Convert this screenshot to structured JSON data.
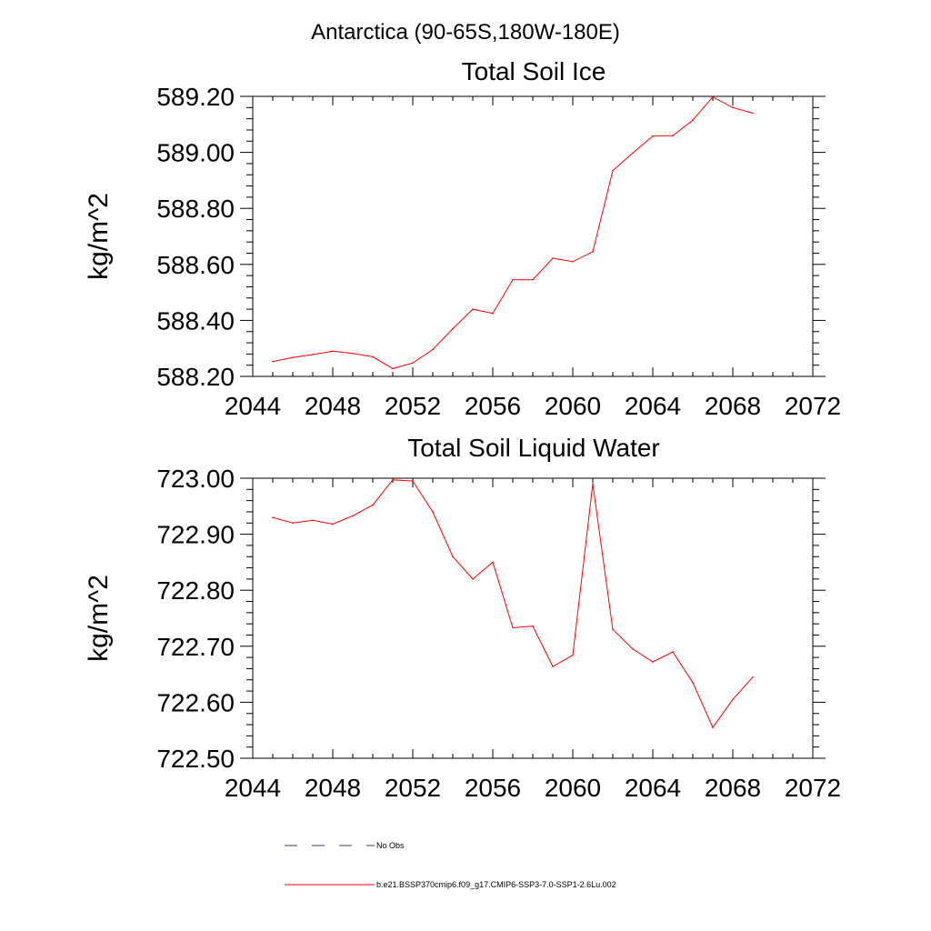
{
  "figure": {
    "region_title": "Antarctica (90-65S,180W-180E)"
  },
  "chart_data": [
    {
      "type": "line",
      "title": "Total Soil Ice",
      "xlabel": "",
      "ylabel": "kg/m^2",
      "xlim": [
        2044,
        2072
      ],
      "ylim": [
        588.2,
        589.2
      ],
      "x_ticks": [
        2044,
        2048,
        2052,
        2056,
        2060,
        2064,
        2068,
        2072
      ],
      "y_ticks": [
        588.2,
        588.4,
        588.6,
        588.8,
        589.0,
        589.2
      ],
      "y_tick_labels": [
        "588.20",
        "588.40",
        "588.60",
        "588.80",
        "589.00",
        "589.20"
      ],
      "grid": false,
      "series": [
        {
          "name": "b.e21.BSSP370cmip6.f09_g17.CMIP6-SSP3-7.0-SSP1-2.6Lu.002",
          "color": "#ff0000",
          "x": [
            2045,
            2046,
            2047,
            2048,
            2049,
            2050,
            2051,
            2052,
            2053,
            2054,
            2055,
            2056,
            2057,
            2058,
            2059,
            2060,
            2061,
            2062,
            2063,
            2064,
            2065,
            2066,
            2067,
            2068,
            2069
          ],
          "values": [
            588.253,
            588.268,
            588.278,
            588.29,
            588.282,
            588.27,
            588.228,
            588.248,
            588.296,
            588.37,
            588.44,
            588.425,
            588.545,
            588.545,
            588.622,
            588.61,
            588.645,
            588.935,
            588.998,
            589.058,
            589.06,
            589.115,
            589.198,
            589.16,
            589.14
          ]
        }
      ]
    },
    {
      "type": "line",
      "title": "Total Soil Liquid Water",
      "xlabel": "",
      "ylabel": "kg/m^2",
      "xlim": [
        2044,
        2072
      ],
      "ylim": [
        722.5,
        723.0
      ],
      "x_ticks": [
        2044,
        2048,
        2052,
        2056,
        2060,
        2064,
        2068,
        2072
      ],
      "y_ticks": [
        722.5,
        722.6,
        722.7,
        722.8,
        722.9,
        723.0
      ],
      "y_tick_labels": [
        "722.50",
        "722.60",
        "722.70",
        "722.80",
        "722.90",
        "723.00"
      ],
      "grid": false,
      "series": [
        {
          "name": "b.e21.BSSP370cmip6.f09_g17.CMIP6-SSP3-7.0-SSP1-2.6Lu.002",
          "color": "#ff0000",
          "x": [
            2045,
            2046,
            2047,
            2048,
            2049,
            2050,
            2051,
            2052,
            2053,
            2054,
            2055,
            2056,
            2057,
            2058,
            2059,
            2060,
            2061,
            2062,
            2063,
            2064,
            2065,
            2066,
            2067,
            2068,
            2069
          ],
          "values": [
            722.93,
            722.92,
            722.925,
            722.918,
            722.933,
            722.952,
            722.997,
            722.995,
            722.94,
            722.86,
            722.82,
            722.85,
            722.733,
            722.736,
            722.664,
            722.684,
            722.99,
            722.73,
            722.695,
            722.672,
            722.69,
            722.635,
            722.555,
            722.605,
            722.645
          ]
        }
      ]
    }
  ],
  "legend": {
    "placement": "bottom",
    "entries": [
      {
        "label": "No Obs",
        "color": "#3a3a7a",
        "style": "dashed"
      },
      {
        "label": "b.e21.BSSP370cmip6.f09_g17.CMIP6-SSP3-7.0-SSP1-2.6Lu.002",
        "color": "#ff0000",
        "style": "solid"
      }
    ]
  }
}
